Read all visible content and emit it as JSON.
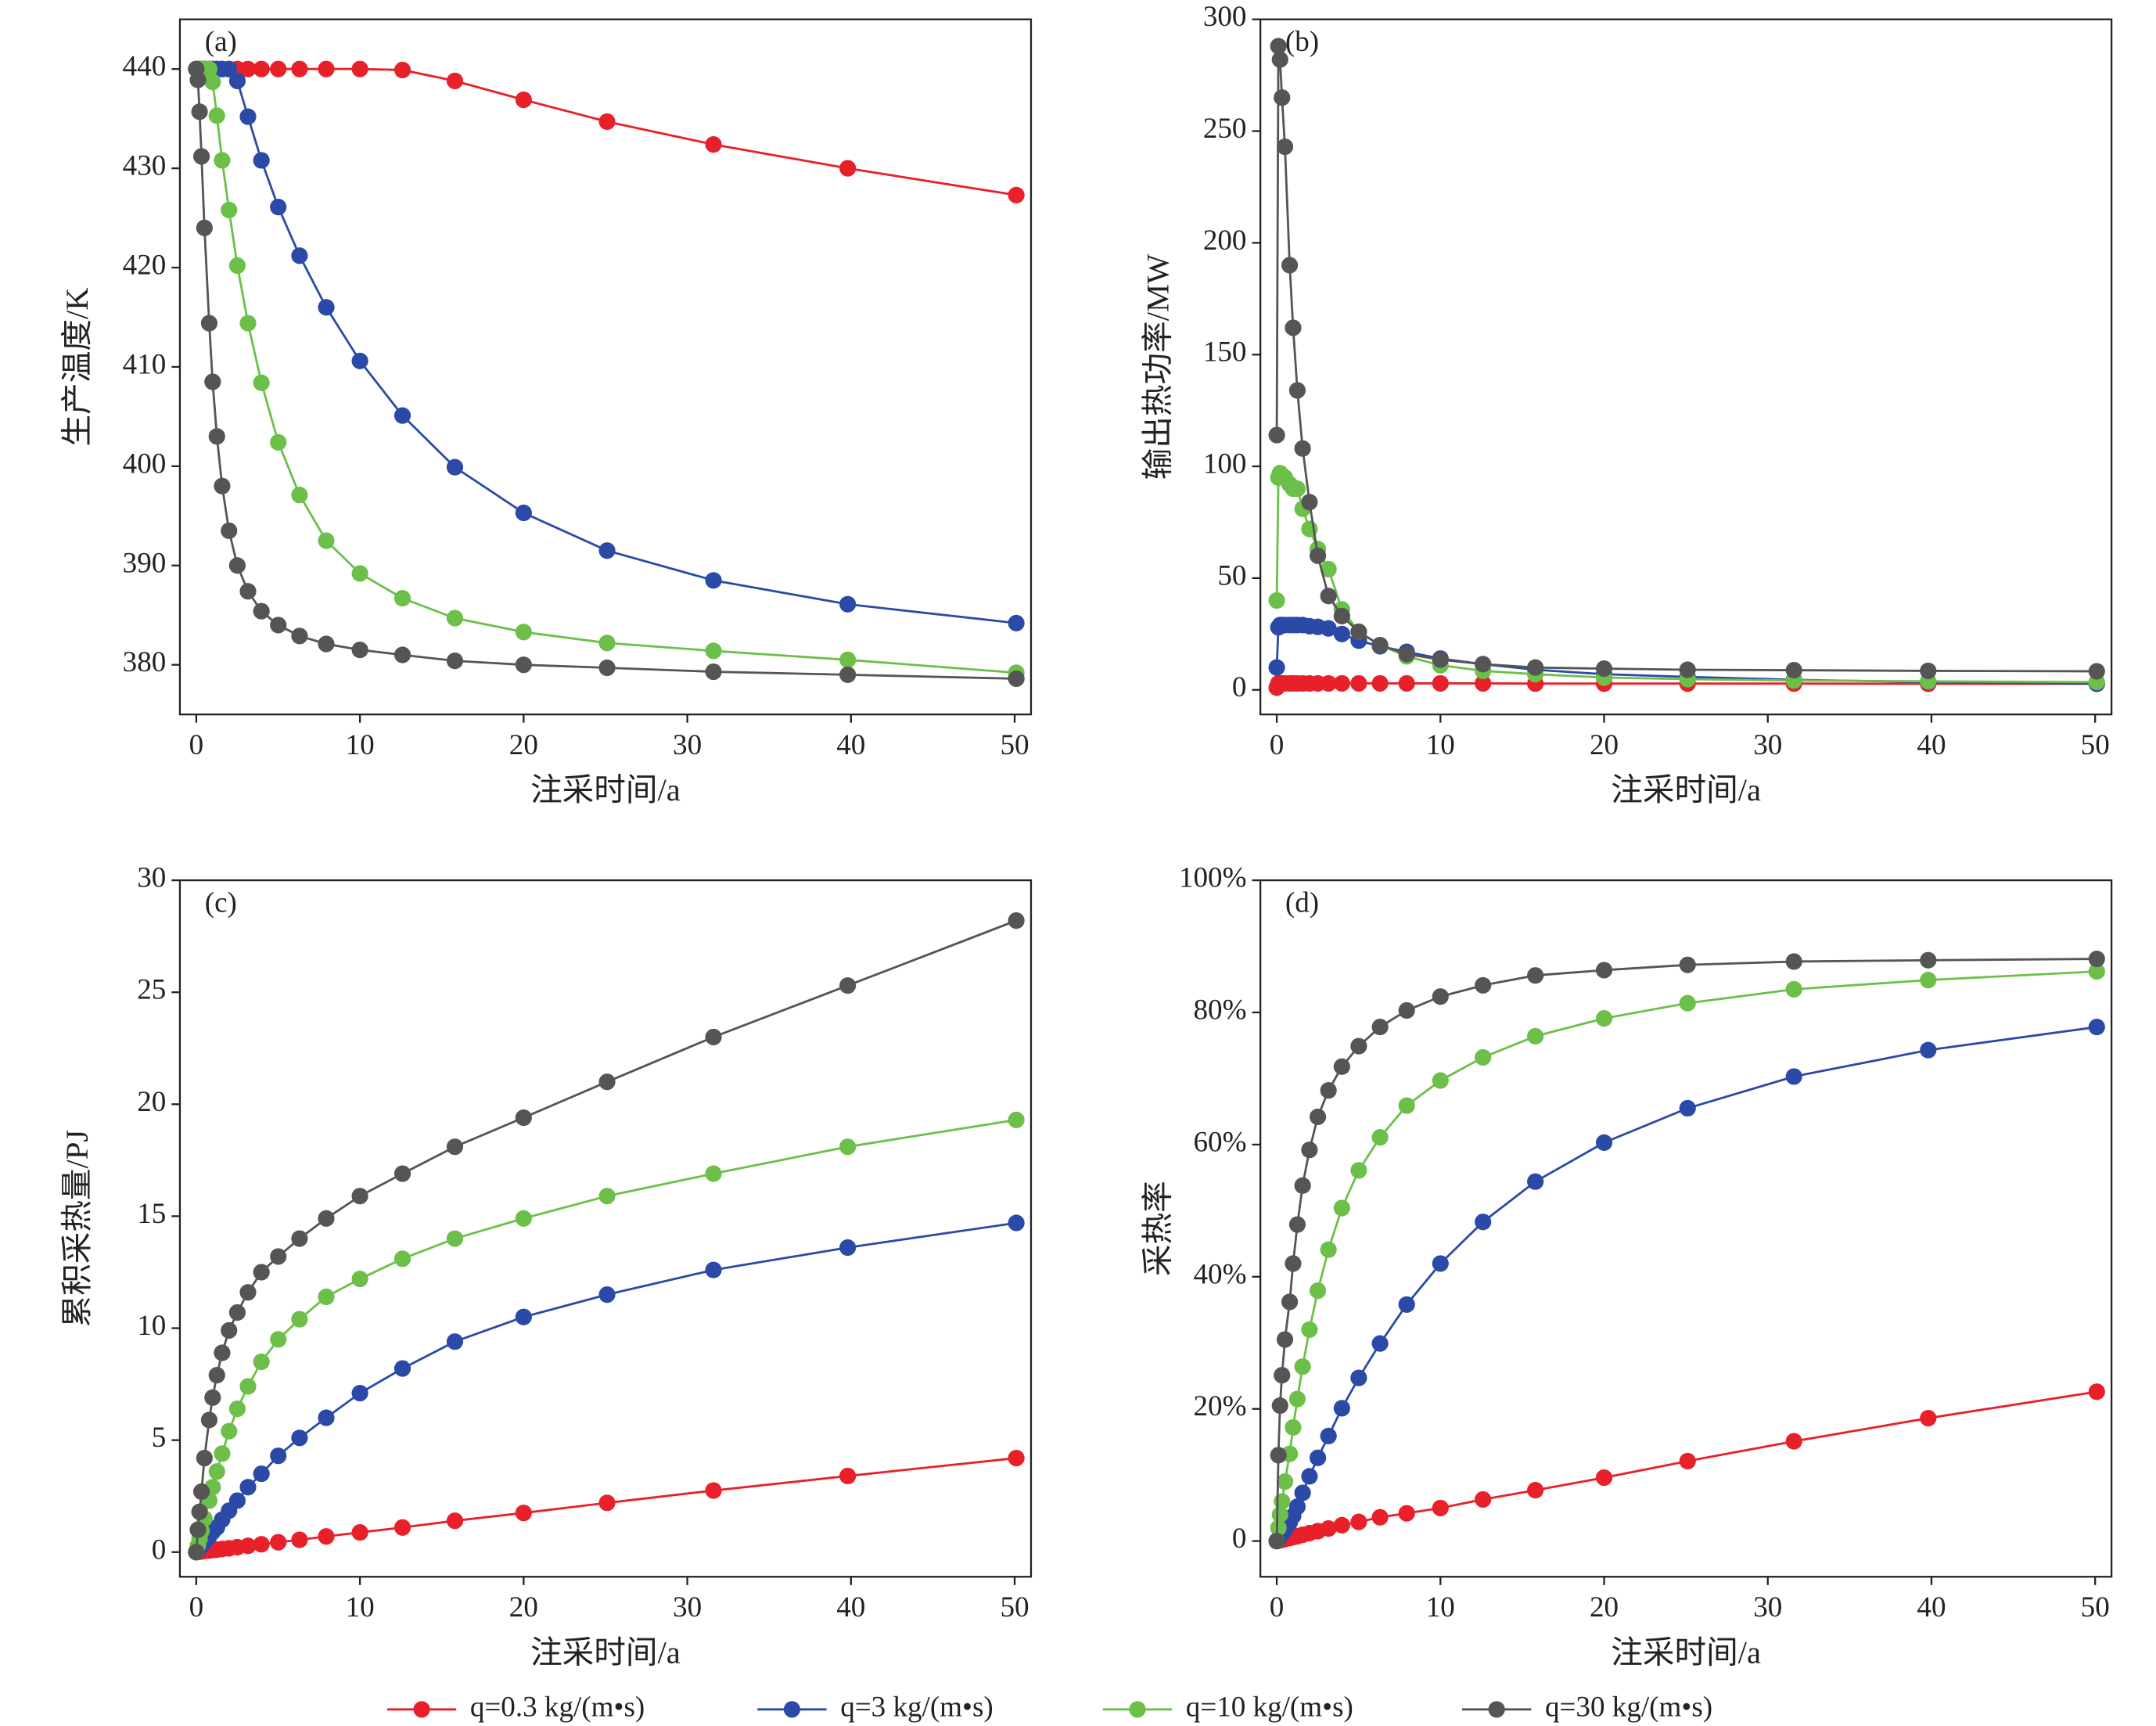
{
  "legend": [
    {
      "name": "q=0.3 kg/(m•s)"
    },
    {
      "name": "q=3 kg/(m•s)"
    },
    {
      "name": "q=10 kg/(m•s)"
    },
    {
      "name": "q=30 kg/(m•s)"
    }
  ],
  "chart_data": [
    {
      "type": "line",
      "annotation": "(a)",
      "xlabel": "注采时间/a",
      "ylabel": "生产温度/K",
      "x": [
        0,
        0.1,
        0.2,
        0.32,
        0.5,
        0.79,
        1,
        1.26,
        1.58,
        2,
        2.51,
        3.16,
        3.98,
        5.01,
        6.31,
        7.94,
        10,
        12.6,
        15.8,
        20,
        25.1,
        31.6,
        39.8,
        50.1
      ],
      "xlim": [
        -1,
        51
      ],
      "xticks": [
        0,
        10,
        20,
        30,
        40,
        50
      ],
      "ylim": [
        375,
        445
      ],
      "yticks": [
        380,
        390,
        400,
        410,
        420,
        430,
        440
      ],
      "series": [
        {
          "color": "#e8202a",
          "values": [
            440,
            440,
            440,
            440,
            440,
            440,
            440,
            440,
            440,
            440,
            440,
            440,
            440,
            440,
            440,
            440,
            440,
            439.9,
            438.8,
            436.9,
            434.7,
            432.4,
            430,
            427.3
          ]
        },
        {
          "color": "#2b4aa8",
          "values": [
            440,
            440,
            440,
            440,
            440,
            440,
            440,
            440,
            440,
            440,
            438.8,
            435.2,
            430.8,
            426.1,
            421.2,
            416,
            410.6,
            405.1,
            399.9,
            395.3,
            391.5,
            388.5,
            386.1,
            384.2
          ]
        },
        {
          "color": "#6cc04a",
          "values": [
            440,
            440,
            440,
            440,
            440,
            440,
            438.7,
            435.3,
            430.8,
            425.8,
            420.2,
            414.4,
            408.4,
            402.4,
            397.1,
            392.5,
            389.2,
            386.7,
            384.7,
            383.3,
            382.2,
            381.4,
            380.5,
            379.2
          ]
        },
        {
          "color": "#555555",
          "values": [
            440,
            438.9,
            435.7,
            431.2,
            424,
            414.4,
            408.5,
            403,
            398,
            393.5,
            390,
            387.4,
            385.4,
            384,
            382.9,
            382.1,
            381.5,
            381,
            380.4,
            380,
            379.7,
            379.3,
            379,
            378.6
          ]
        }
      ]
    },
    {
      "type": "line",
      "annotation": "(b)",
      "xlabel": "注采时间/a",
      "ylabel": "输出热功率/MW",
      "x": [
        0,
        0.1,
        0.2,
        0.32,
        0.5,
        0.79,
        1,
        1.26,
        1.58,
        2,
        2.51,
        3.16,
        3.98,
        5.01,
        6.31,
        7.94,
        10,
        12.6,
        15.8,
        20,
        25.1,
        31.6,
        39.8,
        50.1
      ],
      "xlim": [
        -1,
        51
      ],
      "xticks": [
        0,
        10,
        20,
        30,
        40,
        50
      ],
      "ylim": [
        -11,
        300
      ],
      "yticks": [
        0,
        50,
        100,
        150,
        200,
        250,
        300
      ],
      "series": [
        {
          "color": "#e8202a",
          "values": [
            1,
            2.9,
            2.9,
            2.9,
            2.9,
            2.9,
            2.9,
            2.9,
            2.9,
            2.9,
            2.9,
            2.9,
            2.9,
            2.9,
            2.9,
            2.9,
            2.9,
            2.9,
            2.8,
            2.8,
            2.8,
            2.8,
            2.7,
            2.7
          ]
        },
        {
          "color": "#2b4aa8",
          "values": [
            10,
            28,
            29,
            29,
            29,
            29,
            29,
            29,
            29,
            28.5,
            28.2,
            27.5,
            25,
            22,
            19.5,
            17,
            14,
            11.5,
            9,
            7,
            5.8,
            4.5,
            3.5,
            2.8
          ]
        },
        {
          "color": "#6cc04a",
          "values": [
            40,
            95,
            97,
            96,
            95,
            92,
            90,
            90,
            81,
            72,
            63,
            54,
            36,
            26,
            20,
            15,
            11,
            8.5,
            7,
            5.5,
            4.8,
            4.2,
            3.8,
            3.5
          ]
        },
        {
          "color": "#555555",
          "values": [
            114,
            288,
            282,
            265,
            243,
            190,
            162,
            134,
            108,
            84,
            60,
            42,
            33,
            26,
            20,
            16,
            13.5,
            11.5,
            10,
            9.5,
            9,
            8.8,
            8.5,
            8.3
          ]
        }
      ]
    },
    {
      "type": "line",
      "annotation": "(c)",
      "xlabel": "注采时间/a",
      "ylabel": "累积采热量/PJ",
      "x": [
        0,
        0.1,
        0.2,
        0.32,
        0.5,
        0.79,
        1,
        1.26,
        1.58,
        2,
        2.51,
        3.16,
        3.98,
        5.01,
        6.31,
        7.94,
        10,
        12.6,
        15.8,
        20,
        25.1,
        31.6,
        39.8,
        50.1
      ],
      "xlim": [
        -1,
        51
      ],
      "xticks": [
        0,
        10,
        20,
        30,
        40,
        50
      ],
      "ylim": [
        -1.1,
        30
      ],
      "yticks": [
        0,
        5,
        10,
        15,
        20,
        25,
        30
      ],
      "series": [
        {
          "color": "#e8202a",
          "values": [
            0,
            0.01,
            0.02,
            0.03,
            0.05,
            0.07,
            0.09,
            0.11,
            0.14,
            0.17,
            0.22,
            0.28,
            0.35,
            0.44,
            0.55,
            0.7,
            0.88,
            1.1,
            1.4,
            1.75,
            2.2,
            2.75,
            3.4,
            4.2
          ]
        },
        {
          "color": "#2b4aa8",
          "values": [
            0,
            0.1,
            0.2,
            0.3,
            0.45,
            0.7,
            0.9,
            1.1,
            1.45,
            1.85,
            2.3,
            2.9,
            3.5,
            4.3,
            5.1,
            6.0,
            7.1,
            8.2,
            9.4,
            10.5,
            11.5,
            12.6,
            13.6,
            14.7
          ]
        },
        {
          "color": "#6cc04a",
          "values": [
            0,
            0.3,
            0.6,
            0.95,
            1.5,
            2.3,
            2.9,
            3.6,
            4.4,
            5.4,
            6.4,
            7.4,
            8.5,
            9.5,
            10.4,
            11.4,
            12.2,
            13.1,
            14.0,
            14.9,
            15.9,
            16.9,
            18.1,
            19.3
          ]
        },
        {
          "color": "#555555",
          "values": [
            0,
            1.0,
            1.8,
            2.7,
            4.2,
            5.9,
            6.9,
            7.9,
            8.9,
            9.9,
            10.7,
            11.6,
            12.5,
            13.2,
            14.0,
            14.9,
            15.9,
            16.9,
            18.1,
            19.4,
            21.0,
            23.0,
            25.3,
            28.2
          ]
        }
      ]
    },
    {
      "type": "line",
      "annotation": "(d)",
      "xlabel": "注采时间/a",
      "ylabel": "采热率",
      "x": [
        0,
        0.1,
        0.2,
        0.32,
        0.5,
        0.79,
        1,
        1.26,
        1.58,
        2,
        2.51,
        3.16,
        3.98,
        5.01,
        6.31,
        7.94,
        10,
        12.6,
        15.8,
        20,
        25.1,
        31.6,
        39.8,
        50.1
      ],
      "xlim": [
        -1,
        51
      ],
      "xticks": [
        0,
        10,
        20,
        30,
        40,
        50
      ],
      "ylim": [
        -5.4,
        100
      ],
      "yticks": [
        0,
        {
          "value": 20,
          "label": "20%"
        },
        {
          "value": 40,
          "label": "40%"
        },
        {
          "value": 60,
          "label": "60%"
        },
        {
          "value": 80,
          "label": "80%"
        },
        {
          "value": 100,
          "label": "100%"
        }
      ],
      "series": [
        {
          "color": "#e8202a",
          "values": [
            0,
            0.06,
            0.12,
            0.19,
            0.3,
            0.47,
            0.6,
            0.75,
            0.95,
            1.2,
            1.5,
            1.9,
            2.4,
            2.9,
            3.6,
            4.2,
            5.0,
            6.3,
            7.7,
            9.6,
            12.1,
            15.1,
            18.6,
            22.6
          ]
        },
        {
          "color": "#2b4aa8",
          "values": [
            0,
            0.3,
            0.7,
            1.1,
            1.7,
            2.8,
            3.8,
            5.2,
            7.3,
            9.8,
            12.6,
            15.9,
            20.1,
            24.7,
            29.9,
            35.8,
            42.0,
            48.3,
            54.4,
            60.3,
            65.5,
            70.3,
            74.3,
            77.8
          ]
        },
        {
          "color": "#6cc04a",
          "values": [
            0,
            2,
            4,
            6,
            9.0,
            13.2,
            17.2,
            21.5,
            26.4,
            32.0,
            37.9,
            44.1,
            50.4,
            56.1,
            61.1,
            65.9,
            69.7,
            73.2,
            76.4,
            79.1,
            81.4,
            83.5,
            84.9,
            86.2
          ]
        },
        {
          "color": "#555555",
          "values": [
            0,
            13,
            20.5,
            25.1,
            30.5,
            36.2,
            42.0,
            47.9,
            53.8,
            59.2,
            64.2,
            68.2,
            71.8,
            74.9,
            77.8,
            80.3,
            82.4,
            84.1,
            85.6,
            86.4,
            87.2,
            87.7,
            87.9,
            88.1
          ]
        }
      ]
    }
  ]
}
